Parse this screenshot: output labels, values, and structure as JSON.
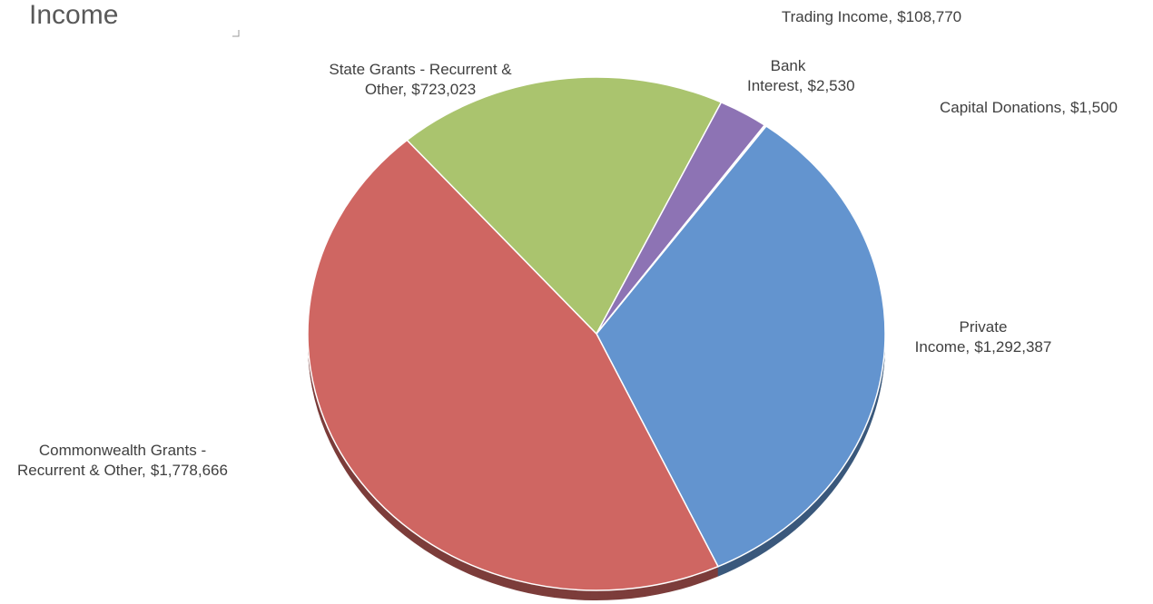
{
  "chart_data": {
    "type": "pie",
    "title": "Income",
    "categories": [
      "Private Income",
      "Commonwealth Grants - Recurrent & Other",
      "State Grants - Recurrent & Other",
      "Trading Income",
      "Bank Interest",
      "Capital Donations"
    ],
    "values": [
      1292387,
      1778666,
      723023,
      108770,
      2530,
      1500
    ],
    "value_labels": [
      "$1,292,387",
      "$1,778,666",
      "$723,023",
      "$108,770",
      "$2,530",
      "$1,500"
    ],
    "colors": [
      "#6394cf",
      "#cf6662",
      "#aac46e",
      "#8d73b4",
      "#4bacc6",
      "#f79646"
    ]
  }
}
